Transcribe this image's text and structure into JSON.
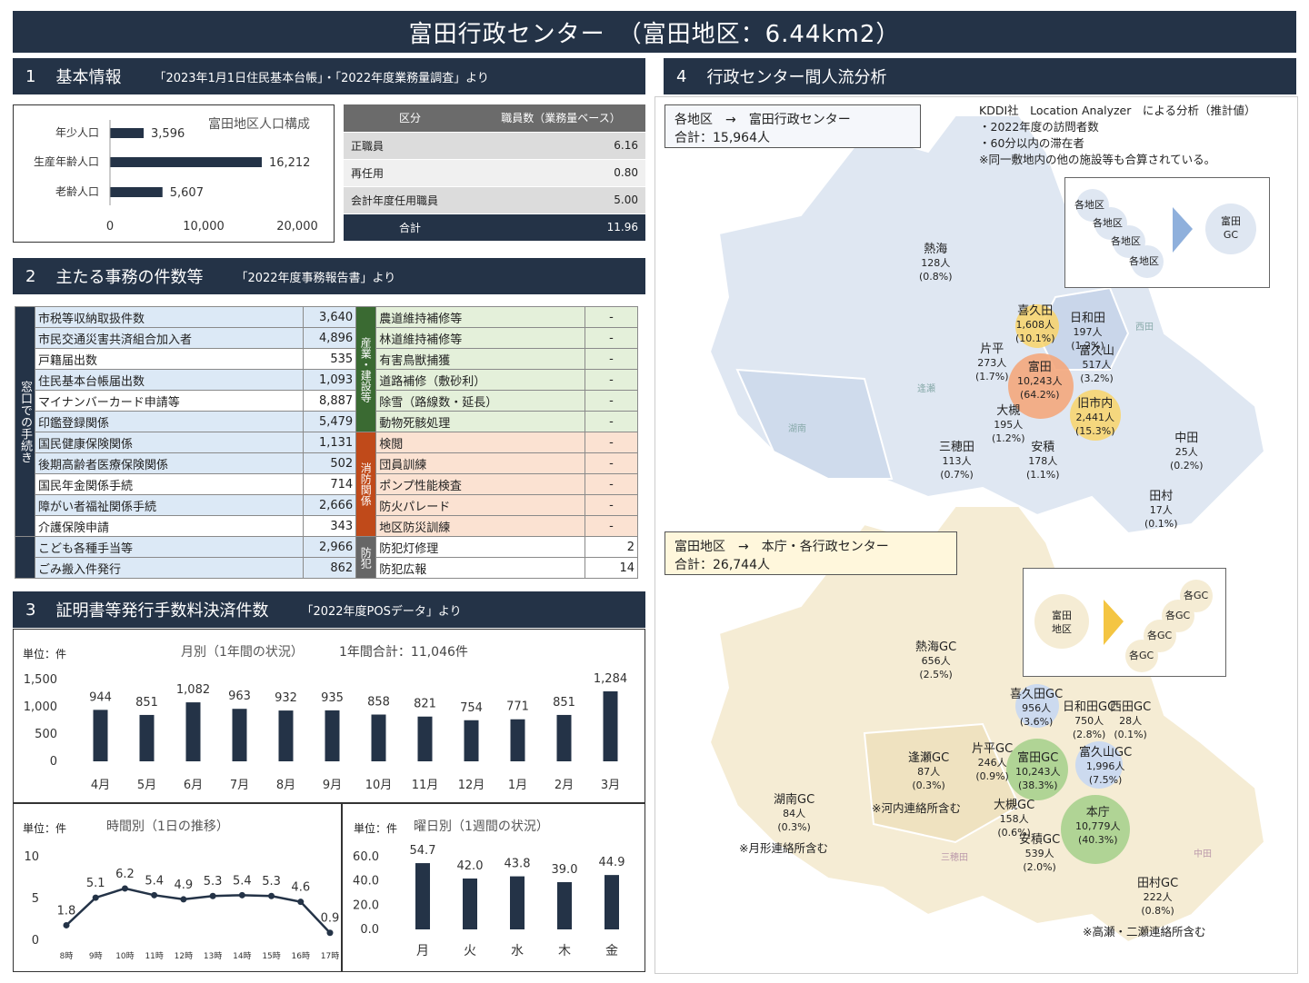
{
  "header": {
    "title": "富田行政センター　（富田地区：6.44km2）"
  },
  "sec1": {
    "num": "1",
    "title": "基本情報",
    "source": "「2023年1月1日住民基本台帳」・「2022年度業務量調査」より",
    "pop_title": "富田地区人口構成",
    "pop_categories": [
      "年少人口",
      "生産年齢人口",
      "老齢人口"
    ],
    "pop_value_labels": [
      "3,596",
      "16,212",
      "5,607"
    ],
    "pop_axis": [
      "0",
      "10,000",
      "20,000"
    ],
    "staff_head": [
      "区分",
      "職員数（業務量ベース）"
    ],
    "staff_rows": [
      {
        "k": "正職員",
        "v": "6.16"
      },
      {
        "k": "再任用",
        "v": "0.80"
      },
      {
        "k": "会計年度任用職員",
        "v": "5.00"
      }
    ],
    "staff_total": {
      "k": "合計",
      "v": "11.96"
    }
  },
  "sec2": {
    "num": "2",
    "title": "主たる事務の件数等",
    "source": "「2022年度事務報告書」より",
    "side_label": "窓口での手続き",
    "left_rows": [
      {
        "k": "市税等収納取扱件数",
        "v": "3,640"
      },
      {
        "k": "市民交通災害共済組合加入者",
        "v": "4,896"
      },
      {
        "k": "戸籍届出数",
        "v": "535"
      },
      {
        "k": "住民基本台帳届出数",
        "v": "1,093"
      },
      {
        "k": "マイナンバーカード申請等",
        "v": "8,887"
      },
      {
        "k": "印鑑登録関係",
        "v": "5,479"
      },
      {
        "k": "国民健康保険関係",
        "v": "1,131"
      },
      {
        "k": "後期高齢者医療保険関係",
        "v": "502"
      },
      {
        "k": "国民年金関係手続",
        "v": "714"
      },
      {
        "k": "障がい者福祉関係手続",
        "v": "2,666"
      },
      {
        "k": "介護保険申請",
        "v": "343"
      },
      {
        "k": "こども各種手当等",
        "v": "2,966"
      },
      {
        "k": "ごみ搬入件発行",
        "v": "862"
      }
    ],
    "right_groups": [
      {
        "label": "産業・建設等",
        "rows": [
          {
            "k": "農道維持補修等",
            "v": "-"
          },
          {
            "k": "林道維持補修等",
            "v": "-"
          },
          {
            "k": "有害鳥獣捕獲",
            "v": "-"
          },
          {
            "k": "道路補修（敷砂利）",
            "v": "-"
          },
          {
            "k": "除雪（路線数・延長）",
            "v": "-"
          },
          {
            "k": "動物死骸処理",
            "v": "-"
          }
        ]
      },
      {
        "label": "消防関係",
        "rows": [
          {
            "k": "検閲",
            "v": "-"
          },
          {
            "k": "団員訓練",
            "v": "-"
          },
          {
            "k": "ポンプ性能検査",
            "v": "-"
          },
          {
            "k": "防火パレード",
            "v": "-"
          },
          {
            "k": "地区防災訓練",
            "v": "-"
          }
        ]
      },
      {
        "label": "防犯",
        "rows": [
          {
            "k": "防犯灯修理",
            "v": "2"
          },
          {
            "k": "防犯広報",
            "v": "14"
          }
        ]
      }
    ]
  },
  "sec3": {
    "num": "3",
    "title": "証明書等発行手数料決済件数",
    "source": "「2022年度POSデータ」より",
    "unit": "単位：件",
    "monthly_title": "月別（1年間の状況）",
    "monthly_total": "1年間合計：11,046件",
    "hourly_title": "時間別（1日の推移）",
    "weekday_title": "曜日別（1週間の状況）"
  },
  "sec4": {
    "num": "4",
    "title": "行政センター間人流分析",
    "in_box": [
      "各地区　→　富田行政センター",
      "合計：15,964人"
    ],
    "out_box": [
      "富田地区　→　本庁・各行政センター",
      "合計：26,744人"
    ],
    "note": [
      "KDDI社　Location Analyzer　による分析（推計値）",
      "・2022年度の訪問者数",
      "・60分以内の滞在者",
      "※同一敷地内の他の施設等も合算されている。"
    ],
    "legend_in": {
      "from": [
        "各地区",
        "各地区",
        "各地区",
        "各地区"
      ],
      "to": "富田GC"
    },
    "legend_out": {
      "from": "富田地区",
      "to": [
        "各GC",
        "各GC",
        "各GC",
        "各GC"
      ]
    },
    "in_labels": [
      {
        "n": "熱海",
        "p": "128人",
        "r": "(0.8%)"
      },
      {
        "n": "喜久田",
        "p": "1,608人",
        "r": "(10.1%)"
      },
      {
        "n": "日和田",
        "p": "197人",
        "r": "(1.2%)"
      },
      {
        "n": "片平",
        "p": "273人",
        "r": "(1.7%)"
      },
      {
        "n": "富田",
        "p": "10,243人",
        "r": "(64.2%)"
      },
      {
        "n": "富久山",
        "p": "517人",
        "r": "(3.2%)"
      },
      {
        "n": "旧市内",
        "p": "2,441人",
        "r": "(15.3%)"
      },
      {
        "n": "大槻",
        "p": "195人",
        "r": "(1.2%)"
      },
      {
        "n": "三穂田",
        "p": "113人",
        "r": "(0.7%)"
      },
      {
        "n": "安積",
        "p": "178人",
        "r": "(1.1%)"
      },
      {
        "n": "中田",
        "p": "25人",
        "r": "(0.2%)"
      },
      {
        "n": "田村",
        "p": "17人",
        "r": "(0.1%)"
      }
    ],
    "out_labels": [
      {
        "n": "熱海GC",
        "p": "656人",
        "r": "(2.5%)"
      },
      {
        "n": "喜久田GC",
        "p": "956人",
        "r": "(3.6%)"
      },
      {
        "n": "日和田GC",
        "p": "750人",
        "r": "(2.8%)"
      },
      {
        "n": "西田GC",
        "p": "28人",
        "r": "(0.1%)"
      },
      {
        "n": "片平GC",
        "p": "246人",
        "r": "(0.9%)"
      },
      {
        "n": "富田GC",
        "p": "10,243人",
        "r": "(38.3%)"
      },
      {
        "n": "富久山GC",
        "p": "1,996人",
        "r": "(7.5%)"
      },
      {
        "n": "逢瀬GC",
        "p": "87人",
        "r": "(0.3%)"
      },
      {
        "n": "大槻GC",
        "p": "158人",
        "r": "(0.6%)"
      },
      {
        "n": "本庁",
        "p": "10,779人",
        "r": "(40.3%)"
      },
      {
        "n": "湖南GC",
        "p": "84人",
        "r": "(0.3%)"
      },
      {
        "n": "安積GC",
        "p": "539人",
        "r": "(2.0%)"
      },
      {
        "n": "田村GC",
        "p": "222人",
        "r": "(0.8%)"
      }
    ],
    "out_notes": [
      "※河内連絡所含む",
      "※月形連絡所含む",
      "※高瀬・二瀬連絡所含む"
    ],
    "region_names": [
      "西田",
      "逢瀬",
      "湖南",
      "中田",
      "三穂田"
    ]
  },
  "chart_data": [
    {
      "type": "bar",
      "id": "population",
      "categories": [
        "年少人口",
        "生産年齢人口",
        "老齢人口"
      ],
      "values": [
        3596,
        16212,
        5607
      ],
      "xlim": [
        0,
        20000
      ],
      "orientation": "horizontal",
      "title": "富田地区人口構成"
    },
    {
      "type": "bar",
      "id": "monthly",
      "categories": [
        "4月",
        "5月",
        "6月",
        "7月",
        "8月",
        "9月",
        "10月",
        "11月",
        "12月",
        "1月",
        "2月",
        "3月"
      ],
      "values": [
        944,
        851,
        1082,
        963,
        932,
        935,
        858,
        821,
        754,
        771,
        851,
        1284
      ],
      "ylim": [
        0,
        1500
      ],
      "yticks": [
        "0",
        "500",
        "1,000",
        "1,500"
      ],
      "value_labels": [
        "944",
        "851",
        "1,082",
        "963",
        "932",
        "935",
        "858",
        "821",
        "754",
        "771",
        "851",
        "1,284"
      ],
      "title": "月別（1年間の状況）"
    },
    {
      "type": "line",
      "id": "hourly",
      "categories": [
        "8時",
        "9時",
        "10時",
        "11時",
        "12時",
        "13時",
        "14時",
        "15時",
        "16時",
        "17時"
      ],
      "values": [
        1.8,
        5.1,
        6.2,
        5.4,
        4.9,
        5.3,
        5.4,
        5.3,
        4.6,
        0.9
      ],
      "ylim": [
        0,
        10
      ],
      "yticks": [
        "0",
        "5",
        "10"
      ],
      "title": "時間別（1日の推移）"
    },
    {
      "type": "bar",
      "id": "weekday",
      "categories": [
        "月",
        "火",
        "水",
        "木",
        "金"
      ],
      "values": [
        54.7,
        42.0,
        43.8,
        39.0,
        44.9
      ],
      "ylim": [
        0,
        60
      ],
      "yticks": [
        "0.0",
        "20.0",
        "40.0",
        "60.0"
      ],
      "value_labels": [
        "54.7",
        "42.0",
        "43.8",
        "39.0",
        "44.9"
      ],
      "title": "曜日別（1週間の状況）"
    }
  ]
}
